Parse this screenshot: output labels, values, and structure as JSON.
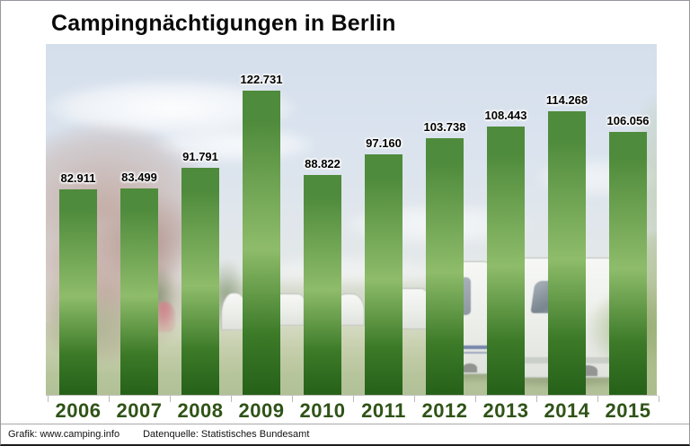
{
  "chart_data": {
    "type": "bar",
    "title": "Campingnächtigungen in Berlin",
    "categories": [
      "2006",
      "2007",
      "2008",
      "2009",
      "2010",
      "2011",
      "2012",
      "2013",
      "2014",
      "2015"
    ],
    "values": [
      82911,
      83499,
      91791,
      122731,
      88822,
      97160,
      103738,
      108443,
      114268,
      106056
    ],
    "value_labels": [
      "82.911",
      "83.499",
      "91.791",
      "122.731",
      "88.822",
      "97.160",
      "103.738",
      "108.443",
      "114.268",
      "106.056"
    ],
    "xlabel": "",
    "ylabel": "",
    "ylim": [
      0,
      140000
    ],
    "grid": false,
    "legend": false,
    "value_labels_position": "above-bars",
    "background": "washed-out campsite photo with caravans, tents and trees"
  },
  "style": {
    "bar_gradient_top": "#4f8b3c",
    "bar_gradient_mid": "#8ebc6a",
    "bar_gradient_bottom": "#256018",
    "year_label_color": "#2f5317",
    "value_label_color": "#000000",
    "title_color": "#0a0a0a",
    "axis_color": "#c3c3c3"
  },
  "footer": {
    "credit": "Grafik: www.camping.info",
    "source": "Datenquelle: Statistisches Bundesamt"
  }
}
